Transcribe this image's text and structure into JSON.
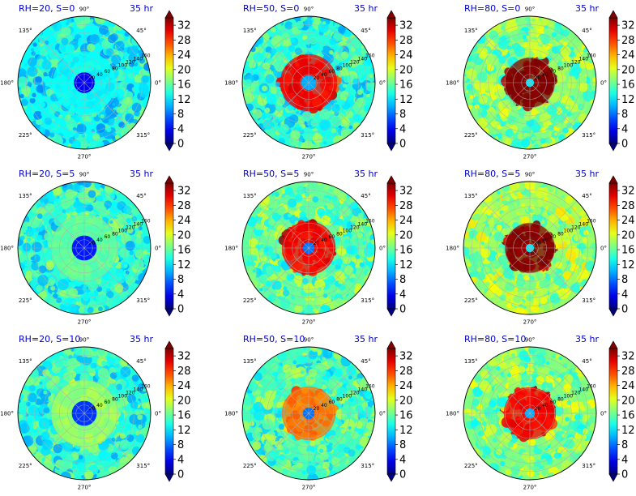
{
  "figure": {
    "colormap": "jet",
    "time_label": "35 hr"
  },
  "chart_data": [
    {
      "type": "heatmap",
      "projection": "polar",
      "title": "RH=20, S=0",
      "annotation": "35 hr",
      "rh": 20,
      "s": 0,
      "angular_ticks": [
        "0°",
        "45°",
        "90°",
        "135°",
        "180°",
        "225°",
        "270°",
        "315°"
      ],
      "radial_ticks": [
        "20",
        "40",
        "60",
        "80",
        "100",
        "120",
        "140",
        "160"
      ],
      "rlim": [
        0,
        160
      ],
      "colorbar_ticks": [
        "0",
        "4",
        "8",
        "12",
        "16",
        "20",
        "24",
        "28",
        "32"
      ],
      "clim": [
        0,
        34
      ],
      "center_value": 4,
      "core_radius": 25,
      "ambient_value": 13,
      "inner_ring_value": 13
    },
    {
      "type": "heatmap",
      "projection": "polar",
      "title": "RH=50, S=0",
      "annotation": "35 hr",
      "rh": 50,
      "s": 0,
      "angular_ticks": [
        "0°",
        "45°",
        "90°",
        "135°",
        "180°",
        "225°",
        "270°",
        "315°"
      ],
      "radial_ticks": [
        "20",
        "40",
        "60",
        "80",
        "100",
        "120",
        "140",
        "160"
      ],
      "rlim": [
        0,
        160
      ],
      "colorbar_ticks": [
        "0",
        "4",
        "8",
        "12",
        "16",
        "20",
        "24",
        "28",
        "32"
      ],
      "clim": [
        0,
        34
      ],
      "center_value": 10,
      "core_radius": 18,
      "ambient_value": 14,
      "inner_ring_value": 30
    },
    {
      "type": "heatmap",
      "projection": "polar",
      "title": "RH=80, S=0",
      "annotation": "35 hr",
      "rh": 80,
      "s": 0,
      "angular_ticks": [
        "0°",
        "45°",
        "90°",
        "135°",
        "180°",
        "225°",
        "270°",
        "315°"
      ],
      "radial_ticks": [
        "20",
        "40",
        "60",
        "80",
        "100",
        "120",
        "140",
        "160"
      ],
      "rlim": [
        0,
        160
      ],
      "colorbar_ticks": [
        "0",
        "4",
        "8",
        "12",
        "16",
        "20",
        "24",
        "28",
        "32"
      ],
      "clim": [
        0,
        34
      ],
      "center_value": 12,
      "core_radius": 10,
      "ambient_value": 17,
      "inner_ring_value": 34
    },
    {
      "type": "heatmap",
      "projection": "polar",
      "title": "RH=20, S=5",
      "annotation": "35 hr",
      "rh": 20,
      "s": 5,
      "angular_ticks": [
        "0°",
        "45°",
        "90°",
        "135°",
        "180°",
        "225°",
        "270°",
        "315°"
      ],
      "radial_ticks": [
        "20",
        "40",
        "60",
        "80",
        "100",
        "120",
        "140",
        "160"
      ],
      "rlim": [
        0,
        160
      ],
      "colorbar_ticks": [
        "0",
        "4",
        "8",
        "12",
        "16",
        "20",
        "24",
        "28",
        "32"
      ],
      "clim": [
        0,
        34
      ],
      "center_value": 5,
      "core_radius": 30,
      "ambient_value": 14,
      "inner_ring_value": 16
    },
    {
      "type": "heatmap",
      "projection": "polar",
      "title": "RH=50, S=5",
      "annotation": "35 hr",
      "rh": 50,
      "s": 5,
      "angular_ticks": [
        "0°",
        "45°",
        "90°",
        "135°",
        "180°",
        "225°",
        "270°",
        "315°"
      ],
      "radial_ticks": [
        "20",
        "40",
        "60",
        "80",
        "100",
        "120",
        "140",
        "160"
      ],
      "rlim": [
        0,
        160
      ],
      "colorbar_ticks": [
        "0",
        "4",
        "8",
        "12",
        "16",
        "20",
        "24",
        "28",
        "32"
      ],
      "clim": [
        0,
        34
      ],
      "center_value": 8,
      "core_radius": 14,
      "ambient_value": 16,
      "inner_ring_value": 30
    },
    {
      "type": "heatmap",
      "projection": "polar",
      "title": "RH=80, S=5",
      "annotation": "35 hr",
      "rh": 80,
      "s": 5,
      "angular_ticks": [
        "0°",
        "45°",
        "90°",
        "135°",
        "180°",
        "225°",
        "270°",
        "315°"
      ],
      "radial_ticks": [
        "20",
        "40",
        "60",
        "80",
        "100",
        "120",
        "140",
        "160"
      ],
      "rlim": [
        0,
        160
      ],
      "colorbar_ticks": [
        "0",
        "4",
        "8",
        "12",
        "16",
        "20",
        "24",
        "28",
        "32"
      ],
      "clim": [
        0,
        34
      ],
      "center_value": 12,
      "core_radius": 10,
      "ambient_value": 18,
      "inner_ring_value": 34
    },
    {
      "type": "heatmap",
      "projection": "polar",
      "title": "RH=20, S=10",
      "annotation": "35 hr",
      "rh": 20,
      "s": 10,
      "angular_ticks": [
        "0°",
        "45°",
        "90°",
        "135°",
        "180°",
        "225°",
        "270°",
        "315°"
      ],
      "radial_ticks": [
        "20",
        "40",
        "60",
        "80",
        "100",
        "120",
        "140",
        "160"
      ],
      "rlim": [
        0,
        160
      ],
      "colorbar_ticks": [
        "0",
        "4",
        "8",
        "12",
        "16",
        "20",
        "24",
        "28",
        "32"
      ],
      "clim": [
        0,
        34
      ],
      "center_value": 6,
      "core_radius": 30,
      "ambient_value": 14,
      "inner_ring_value": 18
    },
    {
      "type": "heatmap",
      "projection": "polar",
      "title": "RH=50, S=10",
      "annotation": "35 hr",
      "rh": 50,
      "s": 10,
      "angular_ticks": [
        "0°",
        "45°",
        "90°",
        "135°",
        "180°",
        "225°",
        "270°",
        "315°"
      ],
      "radial_ticks": [
        "20",
        "40",
        "60",
        "80",
        "100",
        "120",
        "140",
        "160"
      ],
      "rlim": [
        0,
        160
      ],
      "colorbar_ticks": [
        "0",
        "4",
        "8",
        "12",
        "16",
        "20",
        "24",
        "28",
        "32"
      ],
      "clim": [
        0,
        34
      ],
      "center_value": 8,
      "core_radius": 14,
      "ambient_value": 15,
      "inner_ring_value": 26
    },
    {
      "type": "heatmap",
      "projection": "polar",
      "title": "RH=80, S=10",
      "annotation": "35 hr",
      "rh": 80,
      "s": 10,
      "angular_ticks": [
        "0°",
        "45°",
        "90°",
        "135°",
        "180°",
        "225°",
        "270°",
        "315°"
      ],
      "radial_ticks": [
        "20",
        "40",
        "60",
        "80",
        "100",
        "120",
        "140",
        "160"
      ],
      "rlim": [
        0,
        160
      ],
      "colorbar_ticks": [
        "0",
        "4",
        "8",
        "12",
        "16",
        "20",
        "24",
        "28",
        "32"
      ],
      "clim": [
        0,
        34
      ],
      "center_value": 10,
      "core_radius": 12,
      "ambient_value": 17,
      "inner_ring_value": 30
    }
  ]
}
